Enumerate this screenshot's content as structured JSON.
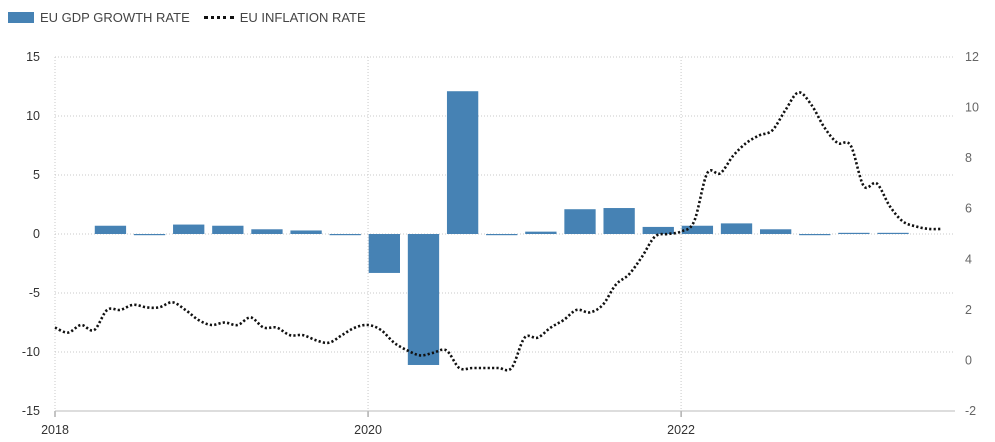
{
  "chart_data": {
    "type": "bar",
    "legend_position": "top-left",
    "grid": true,
    "series": [
      {
        "name": "EU GDP GROWTH RATE",
        "kind": "bar",
        "axis": "left",
        "color": "#4682b4",
        "x": [
          "2018-06",
          "2018-09",
          "2018-12",
          "2019-03",
          "2019-06",
          "2019-09",
          "2019-12",
          "2020-03",
          "2020-06",
          "2020-09",
          "2020-12",
          "2021-03",
          "2021-06",
          "2021-09",
          "2021-12",
          "2022-03",
          "2022-06",
          "2022-09",
          "2022-12",
          "2023-03",
          "2023-06"
        ],
        "values": [
          0.7,
          0.0,
          0.8,
          0.7,
          0.4,
          0.3,
          0.0,
          -3.3,
          -11.1,
          12.1,
          -0.1,
          0.2,
          2.1,
          2.2,
          0.6,
          0.7,
          0.9,
          0.4,
          -0.1,
          0.1,
          0.1
        ]
      },
      {
        "name": "EU INFLATION RATE",
        "kind": "line",
        "axis": "right",
        "color": "#111111",
        "x": [
          "2018-01",
          "2018-02",
          "2018-03",
          "2018-04",
          "2018-05",
          "2018-06",
          "2018-07",
          "2018-08",
          "2018-09",
          "2018-10",
          "2018-11",
          "2018-12",
          "2019-01",
          "2019-02",
          "2019-03",
          "2019-04",
          "2019-05",
          "2019-06",
          "2019-07",
          "2019-08",
          "2019-09",
          "2019-10",
          "2019-11",
          "2019-12",
          "2020-01",
          "2020-02",
          "2020-03",
          "2020-04",
          "2020-05",
          "2020-06",
          "2020-07",
          "2020-08",
          "2020-09",
          "2020-10",
          "2020-11",
          "2020-12",
          "2021-01",
          "2021-02",
          "2021-03",
          "2021-04",
          "2021-05",
          "2021-06",
          "2021-07",
          "2021-08",
          "2021-09",
          "2021-10",
          "2021-11",
          "2021-12",
          "2022-01",
          "2022-02",
          "2022-03",
          "2022-04",
          "2022-05",
          "2022-06",
          "2022-07",
          "2022-08",
          "2022-09",
          "2022-10",
          "2022-11",
          "2022-12",
          "2023-01",
          "2023-02",
          "2023-03",
          "2023-04",
          "2023-05",
          "2023-06",
          "2023-07",
          "2023-08",
          "2023-09"
        ],
        "values": [
          1.3,
          1.1,
          1.4,
          1.2,
          2.0,
          2.0,
          2.2,
          2.1,
          2.1,
          2.3,
          2.0,
          1.6,
          1.4,
          1.5,
          1.4,
          1.7,
          1.3,
          1.3,
          1.0,
          1.0,
          0.8,
          0.7,
          1.0,
          1.3,
          1.4,
          1.2,
          0.7,
          0.4,
          0.2,
          0.3,
          0.4,
          -0.3,
          -0.3,
          -0.3,
          -0.3,
          -0.3,
          0.9,
          0.9,
          1.3,
          1.6,
          2.0,
          1.9,
          2.2,
          3.0,
          3.4,
          4.1,
          4.9,
          5.0,
          5.1,
          5.5,
          7.4,
          7.4,
          8.1,
          8.6,
          8.9,
          9.1,
          9.9,
          10.6,
          10.1,
          9.2,
          8.6,
          8.5,
          6.9,
          7.0,
          6.1,
          5.5,
          5.3,
          5.2,
          5.2
        ]
      }
    ],
    "y_left": {
      "range": [
        -15,
        15
      ],
      "ticks": [
        "15",
        "10",
        "5",
        "0",
        "-5",
        "-10",
        "-15"
      ]
    },
    "y_right": {
      "range": [
        -2,
        12
      ],
      "ticks": [
        "12",
        "10",
        "8",
        "6",
        "4",
        "2",
        "0",
        "-2"
      ]
    },
    "x_axis": {
      "range": [
        "2018-01",
        "2023-10"
      ],
      "ticks": [
        "2018",
        "2020",
        "2022"
      ]
    },
    "title": "",
    "xlabel": "",
    "ylabel": ""
  }
}
